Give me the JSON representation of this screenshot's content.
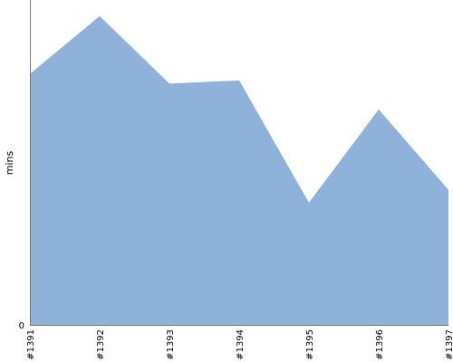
{
  "chart_data": {
    "type": "area",
    "categories": [
      "#1391",
      "#1392",
      "#1393",
      "#1394",
      "#1395",
      "#1396",
      "#1397"
    ],
    "series": [
      {
        "values": [
          7.8,
          9.6,
          7.5,
          7.6,
          3.8,
          6.7,
          4.2
        ]
      }
    ],
    "title": "",
    "xlabel": "",
    "ylabel": "mins",
    "y_tick_labels": [
      "0"
    ],
    "ylim": [
      0,
      10.1
    ],
    "grid": false,
    "colors": {
      "fill": "#8fb2da",
      "axis": "#777777"
    }
  }
}
